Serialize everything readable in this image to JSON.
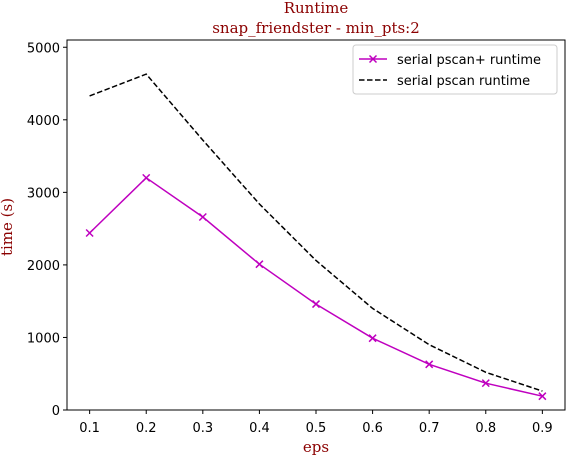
{
  "chart_data": {
    "type": "line",
    "title": "Runtime",
    "subtitle": "snap_friendster - min_pts:2",
    "xlabel": "eps",
    "ylabel": "time (s)",
    "x": [
      0.1,
      0.2,
      0.3,
      0.4,
      0.5,
      0.6,
      0.7,
      0.8,
      0.9
    ],
    "x_tick_labels": [
      "0.1",
      "0.2",
      "0.3",
      "0.4",
      "0.5",
      "0.6",
      "0.7",
      "0.8",
      "0.9"
    ],
    "y_ticks": [
      0,
      1000,
      2000,
      3000,
      4000,
      5000
    ],
    "y_tick_labels": [
      "0",
      "1000",
      "2000",
      "3000",
      "4000",
      "5000"
    ],
    "xlim": [
      0.06,
      0.94
    ],
    "ylim": [
      0,
      5100
    ],
    "grid": false,
    "legend_position": "top-right",
    "series": [
      {
        "name": "serial pscan+ runtime",
        "color": "#bf00bf",
        "line_style": "solid",
        "marker": "x",
        "values": [
          2440,
          3200,
          2660,
          2010,
          1460,
          990,
          630,
          370,
          190
        ]
      },
      {
        "name": "serial pscan runtime",
        "color": "#000000",
        "line_style": "dashed",
        "marker": "none",
        "values": [
          4330,
          4630,
          3720,
          2840,
          2060,
          1400,
          900,
          520,
          260
        ]
      }
    ]
  }
}
